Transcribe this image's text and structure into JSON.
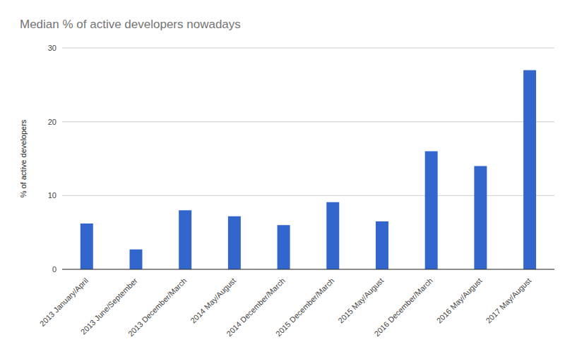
{
  "chart_data": {
    "type": "bar",
    "title": "Median % of active developers nowadays",
    "y_label": "% of active developers",
    "categories": [
      "2013 January/April",
      "2013 June/September",
      "2013 December/March",
      "2014 May/August",
      "2014 December/March",
      "2015 December/March",
      "2015 May/August",
      "2016 December/March",
      "2016 May/August",
      "2017 May/August"
    ],
    "values": [
      6.2,
      2.7,
      8.0,
      7.2,
      6.0,
      9.1,
      6.5,
      16.0,
      14.0,
      27.0
    ],
    "color": "#3366cc",
    "ylim": [
      0,
      30
    ],
    "yticks": [
      0,
      10,
      20,
      30
    ],
    "grid": true
  }
}
